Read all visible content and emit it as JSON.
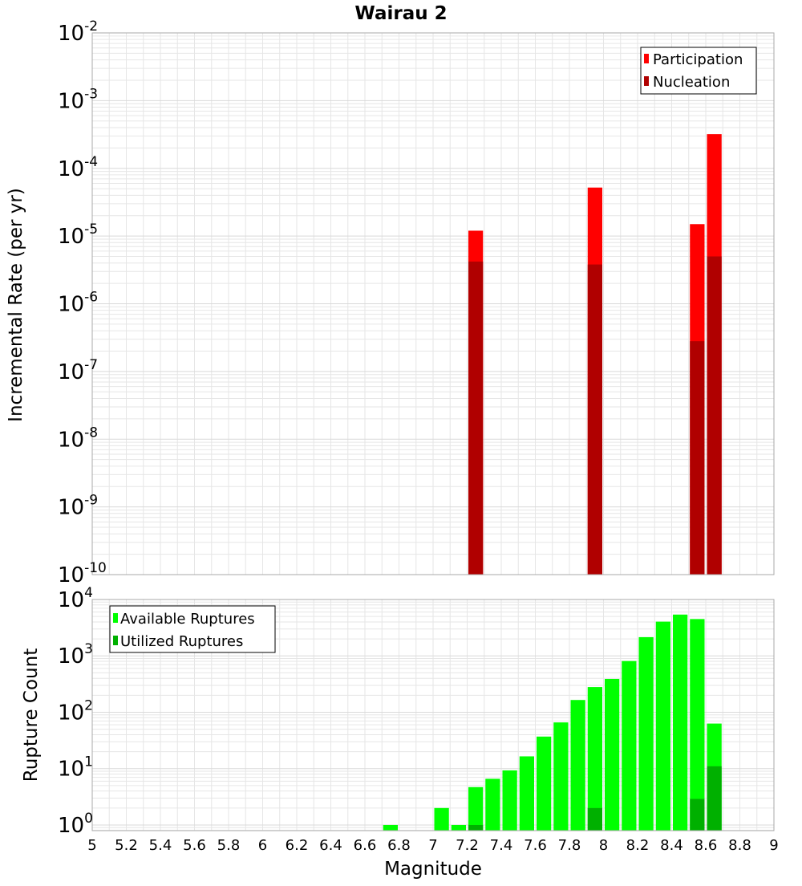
{
  "colors": {
    "participation": "#ff0000",
    "nucleation": "#b00000",
    "available": "#00ff00",
    "utilized": "#00b000",
    "grid": "#e6e6e6",
    "frame": "#aaaaaa"
  },
  "chart_data": [
    {
      "type": "bar",
      "title": "Wairau 2",
      "xlabel": "",
      "ylabel": "Incremental Rate (per yr)",
      "yscale": "log",
      "ylim_exp": [
        -10,
        -2
      ],
      "xlim": [
        5,
        9
      ],
      "grid": true,
      "legend_position": "top-right",
      "y_tick_labels": [
        {
          "base": "10",
          "exp": "-2"
        },
        {
          "base": "10",
          "exp": "-3"
        },
        {
          "base": "10",
          "exp": "-4"
        },
        {
          "base": "10",
          "exp": "-5"
        },
        {
          "base": "10",
          "exp": "-6"
        },
        {
          "base": "10",
          "exp": "-7"
        },
        {
          "base": "10",
          "exp": "-8"
        },
        {
          "base": "10",
          "exp": "-9"
        },
        {
          "base": "10",
          "exp": "-10"
        }
      ],
      "series": [
        {
          "name": "Participation",
          "points": [
            {
              "x": 7.25,
              "y": 1.2e-05
            },
            {
              "x": 7.95,
              "y": 5.2e-05
            },
            {
              "x": 8.55,
              "y": 1.5e-05
            },
            {
              "x": 8.65,
              "y": 0.00032
            }
          ]
        },
        {
          "name": "Nucleation",
          "points": [
            {
              "x": 7.25,
              "y": 4.2e-06
            },
            {
              "x": 7.95,
              "y": 3.8e-06
            },
            {
              "x": 8.55,
              "y": 2.8e-07
            },
            {
              "x": 8.65,
              "y": 5e-06
            }
          ]
        }
      ]
    },
    {
      "type": "bar",
      "title": "",
      "xlabel": "Magnitude",
      "ylabel": "Rupture Count",
      "yscale": "log",
      "ylim_exp": [
        -0.1,
        4
      ],
      "xlim": [
        5,
        9
      ],
      "grid": true,
      "legend_position": "top-left",
      "x_tick_labels": [
        "5",
        "5.2",
        "5.4",
        "5.6",
        "5.8",
        "6",
        "6.2",
        "6.4",
        "6.6",
        "6.8",
        "7",
        "7.2",
        "7.4",
        "7.6",
        "7.8",
        "8",
        "8.2",
        "8.4",
        "8.6",
        "8.8",
        "9"
      ],
      "y_tick_labels": [
        {
          "base": "10",
          "exp": "4"
        },
        {
          "base": "10",
          "exp": "3"
        },
        {
          "base": "10",
          "exp": "2"
        },
        {
          "base": "10",
          "exp": "1"
        },
        {
          "base": "10",
          "exp": "0"
        }
      ],
      "series": [
        {
          "name": "Available Ruptures",
          "points": [
            {
              "x": 6.75,
              "y": 1
            },
            {
              "x": 7.05,
              "y": 2
            },
            {
              "x": 7.15,
              "y": 1
            },
            {
              "x": 7.25,
              "y": 4.7
            },
            {
              "x": 7.35,
              "y": 6.6
            },
            {
              "x": 7.45,
              "y": 9.3
            },
            {
              "x": 7.55,
              "y": 16.5
            },
            {
              "x": 7.65,
              "y": 37
            },
            {
              "x": 7.75,
              "y": 66
            },
            {
              "x": 7.85,
              "y": 165
            },
            {
              "x": 7.95,
              "y": 280
            },
            {
              "x": 8.05,
              "y": 390
            },
            {
              "x": 8.15,
              "y": 810
            },
            {
              "x": 8.25,
              "y": 2150
            },
            {
              "x": 8.35,
              "y": 4050
            },
            {
              "x": 8.45,
              "y": 5400
            },
            {
              "x": 8.55,
              "y": 4500
            },
            {
              "x": 8.65,
              "y": 63
            }
          ]
        },
        {
          "name": "Utilized Ruptures",
          "points": [
            {
              "x": 7.25,
              "y": 1
            },
            {
              "x": 7.95,
              "y": 2
            },
            {
              "x": 8.55,
              "y": 2.9
            },
            {
              "x": 8.65,
              "y": 11
            }
          ]
        }
      ]
    }
  ]
}
